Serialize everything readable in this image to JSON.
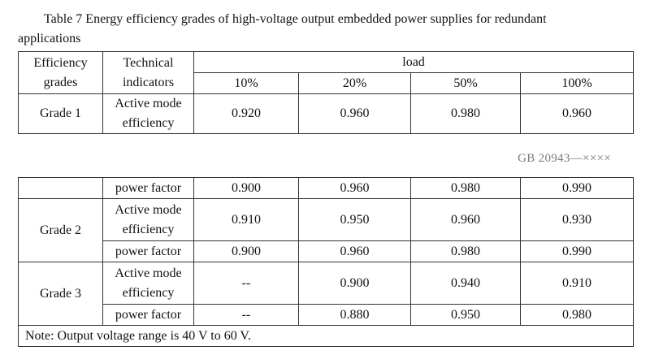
{
  "caption": {
    "line1": "Table 7 Energy efficiency grades of high-voltage output embedded power supplies for redundant",
    "line2": "applications"
  },
  "table1": {
    "header": {
      "grades_line1": "Efficiency",
      "grades_line2": "grades",
      "indicators_line1": "Technical",
      "indicators_line2": "indicators",
      "load": "load",
      "loads": [
        "10%",
        "20%",
        "50%",
        "100%"
      ]
    },
    "rows": [
      {
        "grade": "Grade 1",
        "indicator_line1": "Active mode",
        "indicator_line2": "efficiency",
        "values": [
          "0.920",
          "0.960",
          "0.980",
          "0.960"
        ]
      }
    ]
  },
  "doc_ref": "GB 20943—××××",
  "table2": {
    "rows": [
      {
        "grade": "",
        "indicator": "power factor",
        "values": [
          "0.900",
          "0.960",
          "0.980",
          "0.990"
        ]
      },
      {
        "grade": "Grade 2",
        "indicator_line1": "Active mode",
        "indicator_line2": "efficiency",
        "values": [
          "0.910",
          "0.950",
          "0.960",
          "0.930"
        ]
      },
      {
        "grade": "",
        "indicator": "power factor",
        "values": [
          "0.900",
          "0.960",
          "0.980",
          "0.990"
        ]
      },
      {
        "grade": "Grade 3",
        "indicator_line1": "Active mode",
        "indicator_line2": "efficiency",
        "values": [
          "--",
          "0.900",
          "0.940",
          "0.910"
        ]
      },
      {
        "grade": "",
        "indicator": "power factor",
        "values": [
          "--",
          "0.880",
          "0.950",
          "0.980"
        ]
      }
    ],
    "note": "Note: Output voltage range is 40 V to 60 V."
  }
}
